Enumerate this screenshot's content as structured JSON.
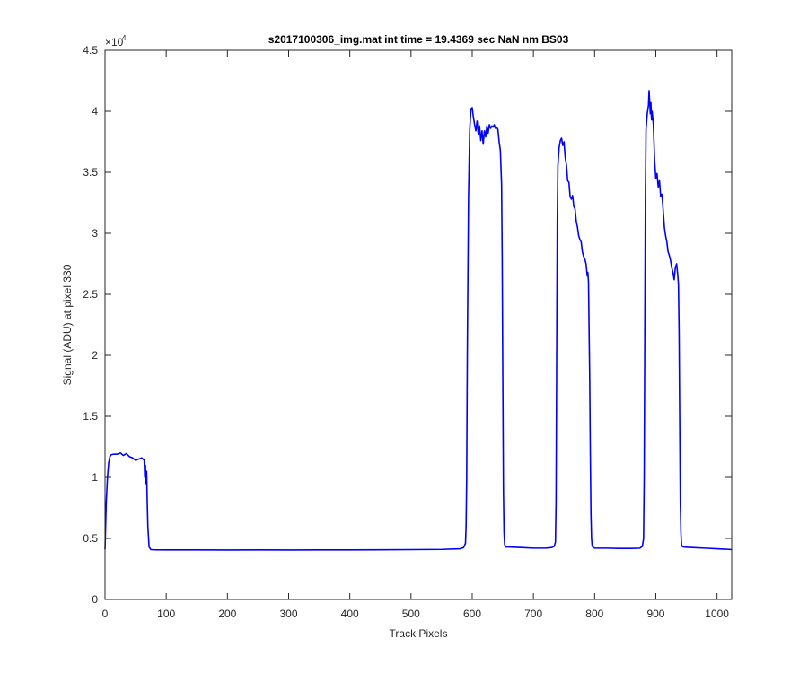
{
  "chart_data": {
    "type": "line",
    "title": "s2017100306_img.mat int time = 19.4369 sec  NaN nm BS03",
    "xlabel": "Track Pixels",
    "ylabel": "Signal (ADU) at pixel 330",
    "xlim": [
      0,
      1024
    ],
    "ylim": [
      0,
      45000
    ],
    "y_exponent_label": "×10",
    "y_exponent_power": "4",
    "x_ticks": [
      0,
      100,
      200,
      300,
      400,
      500,
      600,
      700,
      800,
      900,
      1000
    ],
    "x_tick_labels": [
      "0",
      "100",
      "200",
      "300",
      "400",
      "500",
      "600",
      "700",
      "800",
      "900",
      "1000"
    ],
    "y_ticks": [
      0,
      5000,
      10000,
      15000,
      20000,
      25000,
      30000,
      35000,
      40000,
      45000
    ],
    "y_tick_labels": [
      "0",
      "0.5",
      "1",
      "1.5",
      "2",
      "2.5",
      "3",
      "3.5",
      "4",
      "4.5"
    ],
    "grid": false,
    "box": true,
    "series": [
      {
        "color": "#0000ff",
        "x": [
          0,
          2,
          4,
          6,
          8,
          10,
          14,
          20,
          25,
          30,
          35,
          40,
          45,
          50,
          55,
          60,
          64,
          65,
          66,
          67,
          68,
          69,
          70,
          72,
          75,
          80,
          100,
          150,
          200,
          250,
          300,
          350,
          400,
          450,
          500,
          550,
          580,
          586,
          589,
          590,
          591,
          592,
          594,
          596,
          598,
          600,
          602,
          604,
          606,
          608,
          610,
          612,
          614,
          616,
          618,
          620,
          622,
          624,
          626,
          628,
          630,
          632,
          634,
          636,
          638,
          640,
          642,
          644,
          646,
          648,
          649,
          650,
          651,
          652,
          653,
          655,
          660,
          680,
          700,
          720,
          730,
          734,
          736,
          737,
          738,
          739,
          740,
          742,
          744,
          746,
          748,
          750,
          752,
          754,
          756,
          758,
          760,
          762,
          764,
          766,
          768,
          770,
          772,
          774,
          776,
          778,
          780,
          782,
          784,
          786,
          788,
          789,
          790,
          792,
          793,
          794,
          795,
          796,
          797,
          800,
          820,
          840,
          860,
          874,
          878,
          880,
          881,
          882,
          883,
          884,
          886,
          888,
          889,
          890,
          891,
          892,
          893,
          894,
          896,
          898,
          900,
          902,
          904,
          906,
          908,
          910,
          912,
          914,
          916,
          918,
          920,
          922,
          924,
          926,
          928,
          930,
          932,
          934,
          936,
          937,
          938,
          939,
          940,
          941,
          942,
          943,
          945,
          950,
          960,
          980,
          1000,
          1010,
          1020,
          1024
        ],
        "y": [
          4100,
          8000,
          10000,
          11200,
          11700,
          11850,
          11900,
          11900,
          12000,
          11800,
          11950,
          11700,
          11600,
          11400,
          11500,
          11600,
          11400,
          10000,
          11000,
          9500,
          10500,
          8000,
          6000,
          4300,
          4080,
          4070,
          4060,
          4060,
          4050,
          4060,
          4050,
          4060,
          4060,
          4070,
          4080,
          4100,
          4150,
          4250,
          4600,
          6000,
          10000,
          20000,
          33000,
          38500,
          40200,
          40300,
          39500,
          38900,
          38400,
          39200,
          38100,
          38800,
          37600,
          38400,
          37300,
          38400,
          37900,
          38800,
          38200,
          38900,
          38600,
          38800,
          38700,
          38900,
          38600,
          38700,
          38500,
          37500,
          36800,
          34000,
          28000,
          18000,
          9000,
          5500,
          4500,
          4300,
          4300,
          4250,
          4200,
          4200,
          4250,
          4350,
          4700,
          8000,
          20000,
          31000,
          35500,
          37000,
          37600,
          37800,
          37200,
          37500,
          36200,
          35600,
          34300,
          34200,
          33000,
          32800,
          33100,
          32200,
          32000,
          31000,
          30500,
          29800,
          29500,
          29300,
          28500,
          28100,
          27900,
          27500,
          26500,
          26800,
          26000,
          18000,
          12000,
          7000,
          5000,
          4400,
          4300,
          4200,
          4200,
          4180,
          4180,
          4200,
          4350,
          5000,
          10000,
          22000,
          33000,
          38500,
          39800,
          40500,
          41700,
          40800,
          39800,
          40700,
          39300,
          40000,
          38900,
          36000,
          34500,
          34900,
          33800,
          34300,
          33000,
          33200,
          31900,
          30500,
          29800,
          29300,
          28500,
          28200,
          27800,
          27200,
          26800,
          26200,
          27200,
          27500,
          26500,
          25800,
          22000,
          15000,
          8000,
          5500,
          4500,
          4350,
          4300,
          4280,
          4250,
          4200,
          4150,
          4120,
          4100,
          4080
        ]
      }
    ]
  }
}
